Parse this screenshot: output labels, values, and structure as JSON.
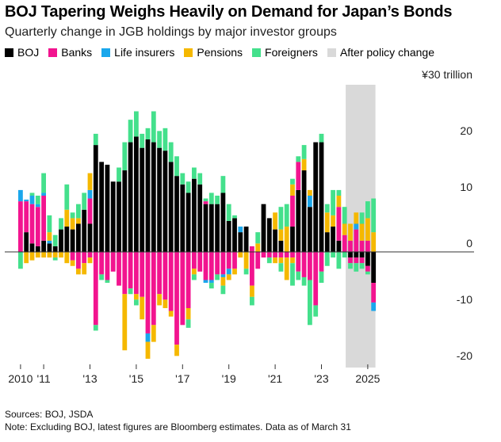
{
  "title": "BOJ Tapering Weighs Heavily on Demand for Japan’s Bonds",
  "subtitle": "Quarterly change in JGB holdings by major investor groups",
  "legend": [
    {
      "label": "BOJ",
      "color": "#000000"
    },
    {
      "label": "Banks",
      "color": "#f2148f"
    },
    {
      "label": "Life insurers",
      "color": "#1aa7ec"
    },
    {
      "label": "Pensions",
      "color": "#f5b800"
    },
    {
      "label": "Foreigners",
      "color": "#44e08c"
    },
    {
      "label": "After policy change",
      "color": "#d9d9d9"
    }
  ],
  "footer": {
    "sources": "Sources: BOJ, JSDA",
    "note": "Note: Excluding BOJ, latest figures are Bloomberg estimates. Data as of March 31"
  },
  "chart_data": {
    "type": "bar",
    "stacked": true,
    "title": "BOJ Tapering Weighs Heavily on Demand for Japan’s Bonds",
    "ylabel": "¥ trillion",
    "ylim": [
      -20,
      30
    ],
    "y_ticks": [
      {
        "value": 30,
        "label": "¥30 trillion"
      },
      {
        "value": 20,
        "label": "20"
      },
      {
        "value": 10,
        "label": "10"
      },
      {
        "value": 0,
        "label": "0"
      },
      {
        "value": -10,
        "label": "-10"
      },
      {
        "value": -20,
        "label": "-20"
      }
    ],
    "x_ticks": [
      {
        "year": 2010,
        "label": "2010"
      },
      {
        "year": 2011,
        "label": "'11"
      },
      {
        "year": 2013,
        "label": "'13"
      },
      {
        "year": 2015,
        "label": "'15"
      },
      {
        "year": 2017,
        "label": "'17"
      },
      {
        "year": 2019,
        "label": "'19"
      },
      {
        "year": 2021,
        "label": "'21"
      },
      {
        "year": 2023,
        "label": "'23"
      },
      {
        "year": 2025,
        "label": "2025"
      }
    ],
    "shaded_region": {
      "label": "After policy change",
      "from_quarter_index": 57,
      "to_quarter_index": 61
    },
    "start_quarter": "2010 Q1",
    "series_order": [
      "BOJ",
      "Banks",
      "Life insurers",
      "Pensions",
      "Foreigners"
    ],
    "quarters": [
      [
        0,
        9,
        2,
        0,
        0
      ],
      [
        3.5,
        5.5,
        0.3,
        0,
        0
      ],
      [
        1.5,
        7,
        1.5,
        0,
        0.5
      ],
      [
        1,
        7,
        0.5,
        0,
        1.5
      ],
      [
        2,
        8,
        0.5,
        0,
        3.5
      ],
      [
        1.5,
        0,
        0.5,
        1.5,
        3
      ],
      [
        1,
        0,
        0,
        0,
        2
      ],
      [
        4,
        0,
        0,
        0,
        2
      ],
      [
        4.5,
        0,
        0,
        3,
        4.5
      ],
      [
        4,
        0,
        0,
        2,
        1
      ],
      [
        5,
        0,
        0,
        1,
        2.5
      ],
      [
        7.5,
        0,
        0,
        0,
        3
      ],
      [
        5,
        4.5,
        1.5,
        3,
        0
      ],
      [
        19,
        0,
        0,
        0,
        2
      ],
      [
        16,
        0,
        0,
        0,
        0
      ],
      [
        15.5,
        0,
        0,
        0,
        0
      ],
      [
        12.5,
        0,
        0,
        0,
        0
      ],
      [
        12.5,
        0,
        0,
        0,
        2.5
      ],
      [
        14.5,
        0,
        0,
        0,
        5
      ],
      [
        19.5,
        0,
        0,
        0,
        4
      ],
      [
        20.5,
        0,
        0,
        0,
        4.5
      ],
      [
        18.5,
        0,
        0,
        0,
        2.5
      ],
      [
        20,
        0,
        0,
        0,
        2
      ],
      [
        19.5,
        0,
        0,
        0,
        5.5
      ],
      [
        18.5,
        0,
        0,
        0,
        3
      ],
      [
        18,
        0,
        0,
        0,
        4
      ],
      [
        16,
        0,
        0,
        0,
        3.5
      ],
      [
        13.5,
        0,
        0,
        0,
        3.5
      ],
      [
        12,
        0,
        0,
        0,
        2
      ],
      [
        10.5,
        0,
        0,
        0,
        2
      ],
      [
        13,
        0,
        0,
        0,
        2
      ],
      [
        12,
        0,
        0,
        0,
        2
      ],
      [
        8.5,
        0.5,
        0,
        0,
        0.5
      ],
      [
        8.5,
        0,
        0,
        0,
        2
      ],
      [
        8.5,
        0,
        0,
        0,
        1.5
      ],
      [
        10.5,
        0,
        0,
        0,
        3
      ],
      [
        5.5,
        0,
        0,
        0,
        3
      ],
      [
        6,
        0,
        0,
        0,
        0.5
      ],
      [
        3.5,
        0,
        1,
        0,
        0
      ],
      [
        4.5,
        0,
        0,
        0,
        0
      ],
      [
        0,
        1,
        0,
        0,
        0
      ],
      [
        0,
        0,
        0,
        1.5,
        2
      ],
      [
        8.5,
        0,
        0,
        0,
        0
      ],
      [
        6,
        0,
        0,
        0,
        0
      ],
      [
        4,
        0,
        0,
        3,
        0
      ],
      [
        2,
        0,
        0,
        2,
        4
      ],
      [
        0,
        0,
        0,
        4.5,
        4
      ],
      [
        4.5,
        5.5,
        0,
        2,
        1
      ],
      [
        11,
        5,
        0,
        0,
        1
      ],
      [
        14.5,
        0,
        0,
        2,
        2.5
      ],
      [
        8,
        0,
        2,
        1,
        0
      ],
      [
        19.5,
        0,
        0,
        0,
        0
      ],
      [
        19.5,
        0,
        0,
        0,
        1.5
      ],
      [
        3.5,
        0,
        0,
        3.5,
        1.5
      ],
      [
        4.5,
        0,
        0,
        2,
        4.5
      ],
      [
        2,
        6,
        0,
        2,
        1
      ],
      [
        0,
        3,
        0,
        2,
        3
      ],
      [
        0,
        2,
        0,
        3,
        0
      ],
      [
        0,
        4,
        1,
        2,
        0
      ],
      [
        0,
        2,
        0,
        3,
        2
      ],
      [
        0,
        2,
        0,
        4,
        3
      ],
      [
        0,
        0,
        0,
        3.5,
        6
      ]
    ],
    "negative_quarters": [
      [
        0,
        0,
        0,
        0,
        -3
      ],
      [
        0,
        0,
        0,
        -2,
        0
      ],
      [
        0,
        0,
        0,
        -1.5,
        0
      ],
      [
        0,
        0,
        0,
        -1,
        0
      ],
      [
        0,
        0,
        0,
        -1,
        0
      ],
      [
        0,
        0,
        0,
        -1,
        0
      ],
      [
        0,
        0,
        0,
        -1,
        -0.5
      ],
      [
        0,
        0,
        0,
        -1,
        0
      ],
      [
        0,
        0,
        0,
        -2,
        0
      ],
      [
        0,
        -1.5,
        0,
        -1,
        0
      ],
      [
        0,
        -3,
        0,
        -1,
        0
      ],
      [
        0,
        -2,
        0,
        -2,
        0
      ],
      [
        0,
        -1,
        0,
        -1,
        0
      ],
      [
        0,
        -13,
        0,
        0,
        -1
      ],
      [
        0,
        -4,
        0,
        0,
        -1
      ],
      [
        0,
        -5,
        0,
        0,
        -0.5
      ],
      [
        0,
        -3.5,
        0,
        0,
        0
      ],
      [
        0,
        -6,
        0,
        0,
        0
      ],
      [
        0,
        -7.5,
        0,
        -10,
        0
      ],
      [
        0,
        -6.5,
        0,
        0,
        -1
      ],
      [
        0,
        -7.5,
        0,
        -1,
        -1
      ],
      [
        0,
        -8,
        0,
        -4,
        0
      ],
      [
        0,
        -14.5,
        -1.5,
        -3,
        0
      ],
      [
        0,
        -13,
        0,
        -3,
        0
      ],
      [
        0,
        -7.5,
        0,
        -2,
        0
      ],
      [
        0,
        -8.5,
        0,
        -1.5,
        0
      ],
      [
        0,
        -10.5,
        0,
        -1,
        0
      ],
      [
        0,
        -16.5,
        0,
        -2,
        0
      ],
      [
        0,
        -13,
        0,
        0,
        0
      ],
      [
        0,
        -10,
        0,
        -2,
        -1.5
      ],
      [
        0,
        -3,
        0,
        -1,
        -1
      ],
      [
        0,
        -3.5,
        0,
        0,
        0
      ],
      [
        0,
        -5,
        -0.5,
        0,
        0
      ],
      [
        0,
        -5,
        -0.5,
        0,
        -1
      ],
      [
        0,
        -4,
        0,
        0,
        -1
      ],
      [
        0,
        -4,
        -0.5,
        -1.5,
        -1.5
      ],
      [
        0,
        -3,
        -1,
        -1,
        0
      ],
      [
        0,
        -3,
        0,
        -1,
        0
      ],
      [
        0,
        0,
        0,
        -1,
        0
      ],
      [
        0,
        0,
        0,
        -3,
        -1
      ],
      [
        0,
        -6,
        0,
        -2,
        -1.5
      ],
      [
        0,
        -3,
        0,
        0,
        0
      ],
      [
        0,
        -1,
        0,
        0,
        0
      ],
      [
        0,
        -1,
        0,
        0,
        -1
      ],
      [
        0,
        -1,
        0,
        -1,
        0
      ],
      [
        0,
        -1,
        0,
        -1,
        -1.5
      ],
      [
        0,
        -1,
        0,
        -4,
        0
      ],
      [
        0,
        -1,
        0,
        -1,
        -4
      ],
      [
        0,
        -3.5,
        0,
        0,
        -1.5
      ],
      [
        0,
        -4.5,
        0,
        0,
        -1.5
      ],
      [
        0,
        -5,
        0,
        0,
        -8
      ],
      [
        0,
        -9.5,
        0,
        0,
        -2
      ],
      [
        0,
        -3.5,
        0,
        0,
        -2
      ],
      [
        0,
        0,
        0,
        0,
        -2.5
      ],
      [
        0,
        0,
        0,
        0,
        -1
      ],
      [
        0,
        0,
        0,
        0,
        -3
      ],
      [
        0,
        0,
        0,
        0,
        -1
      ],
      [
        -1,
        -1,
        0,
        0,
        -1
      ],
      [
        -1,
        -1,
        0,
        0,
        -1.5
      ],
      [
        -1,
        -1,
        0,
        0,
        -1
      ],
      [
        -2.5,
        -1,
        0,
        0,
        -0.5
      ],
      [
        -5.5,
        -3.5,
        -1.5,
        0,
        0
      ]
    ]
  }
}
